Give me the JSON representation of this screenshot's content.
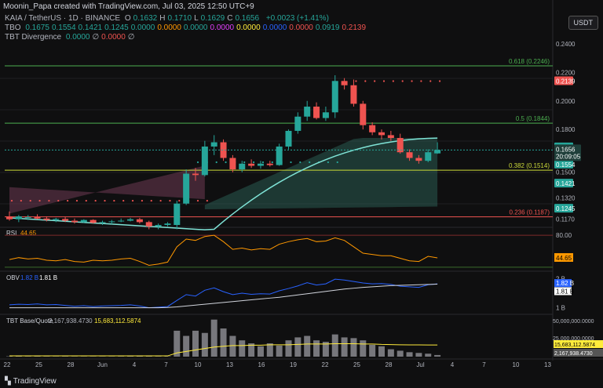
{
  "header": {
    "credit": "Moonin_Papa created with TradingView.com, Jul 03, 2025 12:50 UTC+9",
    "symbol_line": "KAIA / TetherUS · 1D · BINANCE",
    "ohlc": [
      {
        "k": "O",
        "v": "0.1632"
      },
      {
        "k": "H",
        "v": "0.1710"
      },
      {
        "k": "L",
        "v": "0.1629"
      },
      {
        "k": "C",
        "v": "0.1656"
      }
    ],
    "change": "+0.0023 (+1.41%)",
    "tbo_label": "TBO",
    "tbo_values": [
      "0.1675",
      "0.1554",
      "0.1421",
      "0.1245",
      "0.0000",
      "0.0000",
      "0.0000",
      "0.0000",
      "0.0000",
      "0.0000",
      "0.0000",
      "0.0919",
      "0.2139"
    ],
    "tbo_colors": [
      "#26a69a",
      "#26a69a",
      "#26a69a",
      "#26a69a",
      "#26a69a",
      "#ff9800",
      "#26a69a",
      "#e040fb",
      "#ffeb3b",
      "#2962ff",
      "#ef5350",
      "#26a69a",
      "#ef5350"
    ],
    "div_label": "TBT Divergence",
    "div_values": [
      "0.0000",
      "∅",
      "0.0000",
      "∅"
    ],
    "currency": "USDT"
  },
  "colors": {
    "bg": "#0f0f10",
    "up": "#26a69a",
    "down": "#ef5350",
    "grid": "#1f1f22",
    "text": "#b2b5be"
  },
  "chart_data": [
    {
      "type": "candlestick",
      "title": "KAIA / TetherUS · 1D · BINANCE",
      "y_ticks": [
        "0.2400",
        "0.2200",
        "0.2000",
        "0.1800",
        "0.1500",
        "0.1320",
        "0.1170"
      ],
      "x_ticks": [
        "22",
        "25",
        "28",
        "Jun",
        "4",
        "7",
        "10",
        "13",
        "16",
        "19",
        "22",
        "25",
        "28",
        "Jul",
        "4",
        "7",
        "10",
        "13"
      ],
      "candles": [
        {
          "o": 0.119,
          "h": 0.1225,
          "l": 0.116,
          "c": 0.117
        },
        {
          "o": 0.117,
          "h": 0.12,
          "l": 0.115,
          "c": 0.119
        },
        {
          "o": 0.118,
          "h": 0.12,
          "l": 0.1165,
          "c": 0.1185
        },
        {
          "o": 0.1185,
          "h": 0.1205,
          "l": 0.117,
          "c": 0.1175
        },
        {
          "o": 0.1175,
          "h": 0.119,
          "l": 0.1155,
          "c": 0.1165
        },
        {
          "o": 0.1165,
          "h": 0.118,
          "l": 0.115,
          "c": 0.1172
        },
        {
          "o": 0.1172,
          "h": 0.1185,
          "l": 0.115,
          "c": 0.116
        },
        {
          "o": 0.116,
          "h": 0.1175,
          "l": 0.114,
          "c": 0.115
        },
        {
          "o": 0.115,
          "h": 0.117,
          "l": 0.1145,
          "c": 0.1165
        },
        {
          "o": 0.1165,
          "h": 0.117,
          "l": 0.114,
          "c": 0.1145
        },
        {
          "o": 0.1145,
          "h": 0.116,
          "l": 0.113,
          "c": 0.115
        },
        {
          "o": 0.115,
          "h": 0.1165,
          "l": 0.1135,
          "c": 0.1155
        },
        {
          "o": 0.1155,
          "h": 0.1175,
          "l": 0.115,
          "c": 0.116
        },
        {
          "o": 0.116,
          "h": 0.118,
          "l": 0.1155,
          "c": 0.117
        },
        {
          "o": 0.117,
          "h": 0.118,
          "l": 0.114,
          "c": 0.115
        },
        {
          "o": 0.115,
          "h": 0.116,
          "l": 0.11,
          "c": 0.112
        },
        {
          "o": 0.112,
          "h": 0.114,
          "l": 0.11,
          "c": 0.113
        },
        {
          "o": 0.113,
          "h": 0.115,
          "l": 0.112,
          "c": 0.114
        },
        {
          "o": 0.113,
          "h": 0.13,
          "l": 0.11,
          "c": 0.128
        },
        {
          "o": 0.128,
          "h": 0.152,
          "l": 0.127,
          "c": 0.149
        },
        {
          "o": 0.149,
          "h": 0.153,
          "l": 0.144,
          "c": 0.148
        },
        {
          "o": 0.148,
          "h": 0.172,
          "l": 0.147,
          "c": 0.168
        },
        {
          "o": 0.168,
          "h": 0.176,
          "l": 0.162,
          "c": 0.171
        },
        {
          "o": 0.171,
          "h": 0.173,
          "l": 0.158,
          "c": 0.16
        },
        {
          "o": 0.16,
          "h": 0.162,
          "l": 0.15,
          "c": 0.152
        },
        {
          "o": 0.152,
          "h": 0.158,
          "l": 0.15,
          "c": 0.156
        },
        {
          "o": 0.156,
          "h": 0.159,
          "l": 0.153,
          "c": 0.1545
        },
        {
          "o": 0.1545,
          "h": 0.158,
          "l": 0.1525,
          "c": 0.156
        },
        {
          "o": 0.156,
          "h": 0.158,
          "l": 0.154,
          "c": 0.155
        },
        {
          "o": 0.155,
          "h": 0.17,
          "l": 0.1545,
          "c": 0.168
        },
        {
          "o": 0.168,
          "h": 0.18,
          "l": 0.166,
          "c": 0.179
        },
        {
          "o": 0.179,
          "h": 0.192,
          "l": 0.177,
          "c": 0.189
        },
        {
          "o": 0.189,
          "h": 0.2,
          "l": 0.186,
          "c": 0.196
        },
        {
          "o": 0.196,
          "h": 0.199,
          "l": 0.187,
          "c": 0.188
        },
        {
          "o": 0.188,
          "h": 0.196,
          "l": 0.186,
          "c": 0.192
        },
        {
          "o": 0.192,
          "h": 0.218,
          "l": 0.188,
          "c": 0.214
        },
        {
          "o": 0.214,
          "h": 0.216,
          "l": 0.208,
          "c": 0.211
        },
        {
          "o": 0.211,
          "h": 0.215,
          "l": 0.196,
          "c": 0.198
        },
        {
          "o": 0.198,
          "h": 0.2,
          "l": 0.18,
          "c": 0.183
        },
        {
          "o": 0.183,
          "h": 0.185,
          "l": 0.176,
          "c": 0.178
        },
        {
          "o": 0.178,
          "h": 0.18,
          "l": 0.173,
          "c": 0.176
        },
        {
          "o": 0.176,
          "h": 0.179,
          "l": 0.172,
          "c": 0.174
        },
        {
          "o": 0.174,
          "h": 0.177,
          "l": 0.163,
          "c": 0.164
        },
        {
          "o": 0.164,
          "h": 0.166,
          "l": 0.158,
          "c": 0.16
        },
        {
          "o": 0.16,
          "h": 0.162,
          "l": 0.156,
          "c": 0.158
        },
        {
          "o": 0.158,
          "h": 0.166,
          "l": 0.157,
          "c": 0.164
        },
        {
          "o": 0.1632,
          "h": 0.171,
          "l": 0.1629,
          "c": 0.1656
        }
      ],
      "fib_levels": [
        {
          "label": "0.618 (0.2246)",
          "value": 0.2246,
          "color": "#4caf50"
        },
        {
          "label": "0.5 (0.1844)",
          "value": 0.1844,
          "color": "#4caf50"
        },
        {
          "label": "0.382 (0.1514)",
          "value": 0.1514,
          "color": "#cddc39"
        },
        {
          "label": "0.236 (0.1187)",
          "value": 0.1187,
          "color": "#ef5350"
        }
      ],
      "price_labels": [
        {
          "text": "0.2139",
          "value": 0.2139,
          "color": "#ef5350",
          "fg": "#ffffff"
        },
        {
          "text": "0.1675",
          "value": 0.1675,
          "color": "#26a69a",
          "fg": "#ffffff"
        },
        {
          "text": "0.1554",
          "value": 0.1554,
          "color": "#26a69a",
          "fg": "#ffffff"
        },
        {
          "text": "0.1421",
          "value": 0.1421,
          "color": "#26a69a",
          "fg": "#ffffff"
        },
        {
          "text": "0.1245",
          "value": 0.1245,
          "color": "#26a69a",
          "fg": "#ffffff"
        }
      ],
      "last_price": {
        "value": 0.1656,
        "text": "0.1656",
        "countdown": "20:09:05"
      },
      "resistance_dots": {
        "value": 0.2139,
        "from": 37,
        "to": 46
      },
      "support_dots_green": {
        "value": 0.157,
        "from": 20,
        "to": 35
      },
      "support_dots_red": {
        "value": 0.13,
        "from": 0,
        "to": 21
      }
    },
    {
      "type": "line",
      "title": "RSI",
      "value_text": "44.65",
      "value_color": "#ff9800",
      "y_ticks": [
        "80.00"
      ],
      "levels": [
        80,
        30
      ],
      "values": [
        42,
        45,
        43,
        44,
        41,
        40,
        42,
        39,
        38,
        41,
        40,
        41,
        43,
        44,
        39,
        33,
        35,
        38,
        62,
        74,
        72,
        78,
        80,
        70,
        58,
        60,
        57,
        59,
        58,
        66,
        70,
        73,
        75,
        70,
        71,
        76,
        72,
        62,
        52,
        50,
        48,
        48,
        44,
        40,
        39,
        47,
        44.65
      ]
    },
    {
      "type": "line",
      "title": "OBV",
      "value_texts": [
        "1.82 B",
        "1.81 B"
      ],
      "value_colors": [
        "#2962ff",
        "#ffffff"
      ],
      "y_ticks": [
        "2 B",
        "1 B"
      ],
      "series": [
        {
          "values": [
            1.1,
            1.12,
            1.11,
            1.13,
            1.1,
            1.11,
            1.08,
            1.05,
            1.07,
            1.04,
            1.06,
            1.07,
            1.08,
            1.1,
            1.06,
            1.0,
            1.02,
            1.04,
            1.25,
            1.45,
            1.4,
            1.6,
            1.68,
            1.55,
            1.45,
            1.5,
            1.46,
            1.48,
            1.47,
            1.58,
            1.66,
            1.75,
            1.86,
            1.78,
            1.82,
            1.98,
            1.95,
            1.9,
            1.85,
            1.82,
            1.83,
            1.8,
            1.74,
            1.72,
            1.7,
            1.79,
            1.82
          ],
          "color": "#2962ff"
        },
        {
          "values": [
            1.0,
            1.0,
            1.0,
            1.0,
            1.0,
            1.0,
            1.0,
            1.0,
            1.0,
            1.0,
            1.0,
            1.0,
            1.0,
            1.0,
            1.0,
            1.0,
            1.0,
            1.01,
            1.03,
            1.06,
            1.09,
            1.12,
            1.15,
            1.18,
            1.21,
            1.24,
            1.27,
            1.3,
            1.33,
            1.36,
            1.4,
            1.44,
            1.48,
            1.52,
            1.56,
            1.6,
            1.64,
            1.67,
            1.7,
            1.72,
            1.74,
            1.76,
            1.77,
            1.78,
            1.79,
            1.8,
            1.81
          ],
          "color": "#d1d4dc"
        }
      ]
    },
    {
      "type": "bar",
      "title": "TBT Base/Quote",
      "value_texts": [
        "2,167,938.4730",
        "15,683,112.5874"
      ],
      "y_ticks": [
        "50,000,000.0000",
        "25,000,000.0000",
        "15,683,112.5874",
        "2,167,938.4730"
      ],
      "bars": [
        0.5,
        0.6,
        0.4,
        0.5,
        0.4,
        0.3,
        0.4,
        0.3,
        0.3,
        0.3,
        0.3,
        0.3,
        0.4,
        0.5,
        0.6,
        0.5,
        0.4,
        0.5,
        35,
        28,
        35,
        32,
        50,
        38,
        28,
        22,
        18,
        14,
        18,
        15,
        22,
        26,
        28,
        22,
        20,
        30,
        26,
        25,
        22,
        16,
        14,
        10,
        8,
        6,
        5,
        4,
        2.2
      ],
      "avg_line": [
        1,
        1,
        1,
        1,
        1,
        1,
        1,
        1,
        1,
        1,
        1,
        1,
        1,
        1,
        1,
        1,
        1,
        1,
        5,
        7,
        9,
        11,
        13,
        14,
        15,
        15,
        15.5,
        15.5,
        16,
        16,
        16,
        16.5,
        17,
        17,
        17,
        17.5,
        17.5,
        17.5,
        17,
        17,
        16.5,
        16.3,
        16,
        15.9,
        15.8,
        15.7,
        15.7
      ]
    }
  ],
  "footer": {
    "logo": "TradingView"
  }
}
